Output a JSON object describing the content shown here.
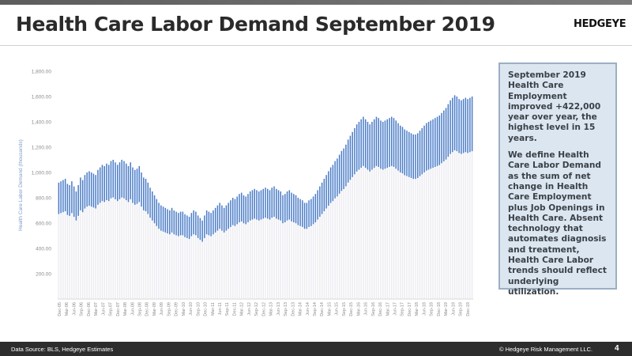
{
  "header": {
    "title": "Health Care Labor Demand September 2019",
    "logo": "HEDGEYE"
  },
  "callout": {
    "p1": "September 2019 Health Care Employment improved +422,000 year over year, the highest level in 15 years.",
    "p2": "We define Health Care Labor Demand as the sum of net change in Health Care Employment plus Job Openings in Health Care.  Absent technology that automates diagnosis and treatment, Health Care Labor trends should reflect underlying utilization."
  },
  "footer": {
    "source": "Data Source: BLS, Hedgeye Estimates",
    "copyright": "© Hedgeye Risk Management LLC.",
    "page": "4"
  },
  "colors": {
    "bar_top": "#4a7cc7",
    "bar_base": "#ededf2",
    "axis_text": "#8a8a8a",
    "ylabel": "#7e9fc9"
  },
  "chart_data": {
    "type": "bar",
    "ylabel": "Health Care Labor Demand (thousands)",
    "ylim": [
      0,
      1800
    ],
    "yticks": [
      "200.00",
      "400.00",
      "600.00",
      "800.00",
      "1,000.00",
      "1,200.00",
      "1,400.00",
      "1,600.00",
      "1,800.00"
    ],
    "grid": false,
    "legend": "none",
    "x_tick_labels": [
      "Dec-05",
      "Mar-06",
      "Jun-06",
      "Sep-06",
      "Dec-06",
      "Mar-07",
      "Jun-07",
      "Sep-07",
      "Dec-07",
      "Mar-08",
      "Jun-08",
      "Sep-08",
      "Dec-08",
      "Mar-09",
      "Jun-09",
      "Sep-09",
      "Dec-09",
      "Mar-10",
      "Jun-10",
      "Sep-10",
      "Dec-10",
      "Mar-11",
      "Jun-11",
      "Sep-11",
      "Dec-11",
      "Mar-12",
      "Jun-12",
      "Sep-12",
      "Dec-12",
      "Mar-13",
      "Jun-13",
      "Sep-13",
      "Dec-13",
      "Mar-14",
      "Jun-14",
      "Sep-14",
      "Dec-14",
      "Mar-15",
      "Jun-15",
      "Sep-15",
      "Dec-15",
      "Mar-16",
      "Jun-16",
      "Sep-16",
      "Dec-16",
      "Mar-17",
      "Jun-17",
      "Sep-17",
      "Dec-17",
      "Mar-18",
      "Jun-18",
      "Sep-18",
      "Dec-18",
      "Mar-19",
      "Jun-19",
      "Sep-19",
      "Dec-19"
    ],
    "series_start": "Dec-05",
    "series_end": "Sep-19",
    "values": [
      920,
      930,
      940,
      950,
      910,
      900,
      930,
      890,
      850,
      900,
      960,
      940,
      980,
      1000,
      1010,
      1000,
      990,
      980,
      1020,
      1040,
      1060,
      1050,
      1070,
      1060,
      1090,
      1100,
      1080,
      1060,
      1080,
      1100,
      1090,
      1070,
      1050,
      1080,
      1040,
      1020,
      1030,
      1050,
      1000,
      960,
      950,
      920,
      880,
      850,
      820,
      790,
      760,
      740,
      730,
      720,
      710,
      700,
      720,
      700,
      690,
      680,
      690,
      690,
      670,
      660,
      650,
      680,
      700,
      690,
      660,
      640,
      620,
      660,
      700,
      690,
      680,
      700,
      720,
      740,
      760,
      740,
      720,
      740,
      760,
      780,
      800,
      790,
      810,
      830,
      840,
      820,
      810,
      830,
      850,
      860,
      870,
      860,
      850,
      860,
      870,
      880,
      870,
      860,
      880,
      890,
      870,
      860,
      850,
      820,
      830,
      850,
      860,
      840,
      830,
      820,
      800,
      790,
      780,
      760,
      760,
      780,
      790,
      810,
      830,
      860,
      890,
      920,
      950,
      980,
      1010,
      1040,
      1060,
      1090,
      1110,
      1140,
      1170,
      1190,
      1220,
      1260,
      1290,
      1320,
      1350,
      1380,
      1400,
      1420,
      1440,
      1420,
      1400,
      1380,
      1400,
      1420,
      1440,
      1430,
      1410,
      1400,
      1410,
      1420,
      1430,
      1440,
      1430,
      1410,
      1390,
      1370,
      1360,
      1340,
      1330,
      1320,
      1310,
      1300,
      1300,
      1310,
      1330,
      1350,
      1370,
      1390,
      1400,
      1410,
      1420,
      1430,
      1440,
      1450,
      1470,
      1490,
      1510,
      1540,
      1570,
      1590,
      1610,
      1600,
      1580,
      1570,
      1580,
      1590,
      1580,
      1590,
      1600
    ]
  }
}
